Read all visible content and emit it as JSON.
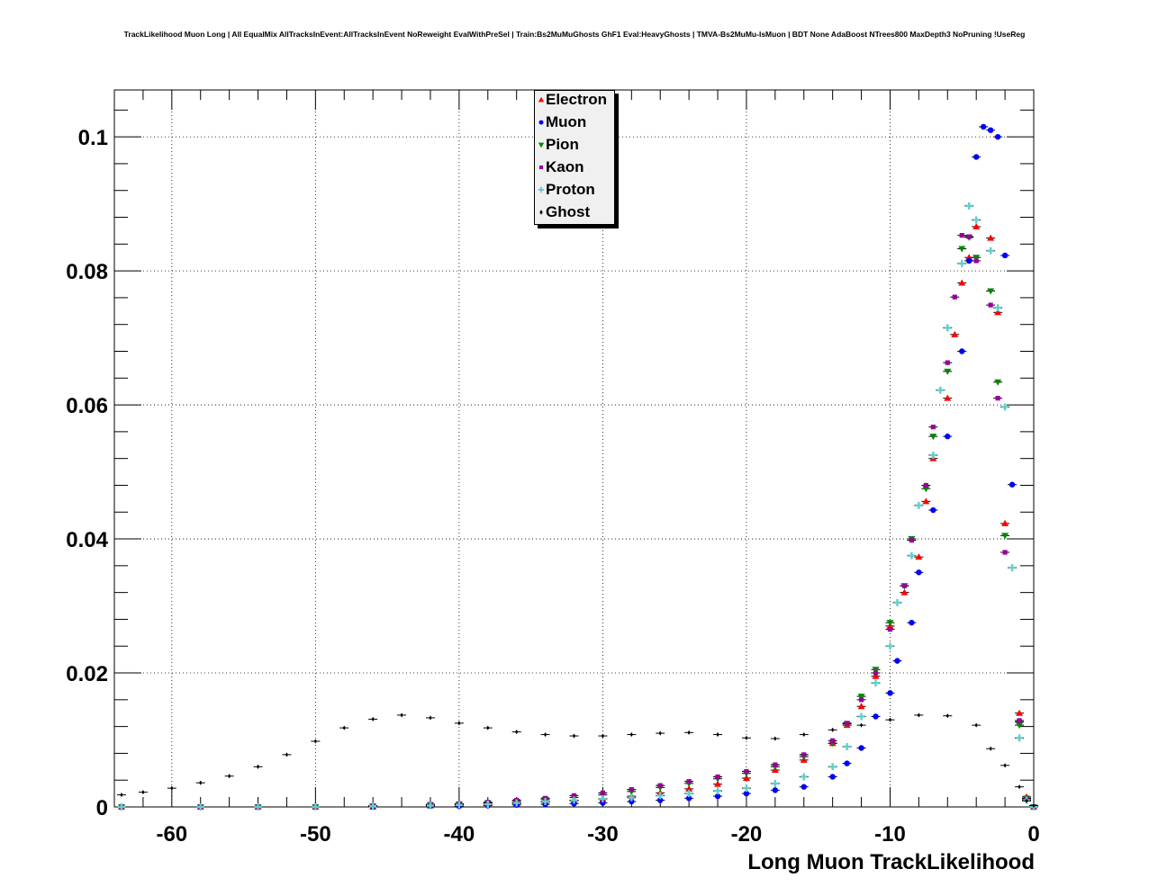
{
  "title": "TrackLikelihood Muon Long | All EqualMix AllTracksInEvent:AllTracksInEvent NoReweight EvalWithPreSel | Train:Bs2MuMuGhosts GhF1 Eval:HeavyGhosts | TMVA-Bs2MuMu-IsMuon | BDT None AdaBoost NTrees800 MaxDepth3 NoPruning !UseReg",
  "chart_data": {
    "type": "scatter",
    "title": "TrackLikelihood Muon Long | All EqualMix AllTracksInEvent:AllTracksInEvent NoReweight EvalWithPreSel | Train:Bs2MuMuGhosts GhF1 Eval:HeavyGhosts | TMVA-Bs2MuMu-IsMuon | BDT None AdaBoost NTrees800 MaxDepth3 NoPruning !UseReg",
    "xlabel": "Long Muon TrackLikelihood",
    "ylabel": "",
    "xlim": [
      -64,
      0
    ],
    "ylim": [
      0,
      0.107
    ],
    "x_ticks": [
      "-60",
      "-50",
      "-40",
      "-30",
      "-20",
      "-10",
      "0"
    ],
    "y_ticks": [
      "0",
      "0.02",
      "0.04",
      "0.06",
      "0.08",
      "0.1"
    ],
    "grid": true,
    "legend_position": "top-center",
    "series": [
      {
        "name": "Electron",
        "color": "#ff0000",
        "marker": "triangle-up",
        "points": [
          [
            -63.5,
            0
          ],
          [
            -58,
            0
          ],
          [
            -54,
            0
          ],
          [
            -50,
            0
          ],
          [
            -46,
            0
          ],
          [
            -42,
            0.0002
          ],
          [
            -40,
            0.0003
          ],
          [
            -38,
            0.0004
          ],
          [
            -36,
            0.0005
          ],
          [
            -34,
            0.0007
          ],
          [
            -32,
            0.0009
          ],
          [
            -30,
            0.0012
          ],
          [
            -28,
            0.0016
          ],
          [
            -26,
            0.0021
          ],
          [
            -24,
            0.0027
          ],
          [
            -22,
            0.0034
          ],
          [
            -20,
            0.0043
          ],
          [
            -18,
            0.0055
          ],
          [
            -16,
            0.007
          ],
          [
            -14,
            0.0095
          ],
          [
            -13,
            0.0122
          ],
          [
            -12,
            0.015
          ],
          [
            -11,
            0.0195
          ],
          [
            -10,
            0.027
          ],
          [
            -9,
            0.032
          ],
          [
            -8,
            0.0373
          ],
          [
            -7.5,
            0.0456
          ],
          [
            -7,
            0.052
          ],
          [
            -6,
            0.061
          ],
          [
            -5.5,
            0.0705
          ],
          [
            -5,
            0.0782
          ],
          [
            -4.5,
            0.082
          ],
          [
            -4,
            0.0866
          ],
          [
            -3,
            0.0849
          ],
          [
            -2.5,
            0.0738
          ],
          [
            -2,
            0.0423
          ],
          [
            -1,
            0.014
          ],
          [
            -0.5,
            0.0015
          ],
          [
            0,
            0
          ]
        ]
      },
      {
        "name": "Muon",
        "color": "#0000ff",
        "marker": "circle",
        "points": [
          [
            -63.5,
            0
          ],
          [
            -58,
            0
          ],
          [
            -54,
            0
          ],
          [
            -50,
            0
          ],
          [
            -46,
            0
          ],
          [
            -42,
            0.0001
          ],
          [
            -40,
            0.0001
          ],
          [
            -38,
            0.0002
          ],
          [
            -36,
            0.0003
          ],
          [
            -34,
            0.0004
          ],
          [
            -32,
            0.0005
          ],
          [
            -30,
            0.0006
          ],
          [
            -28,
            0.0008
          ],
          [
            -26,
            0.001
          ],
          [
            -24,
            0.0013
          ],
          [
            -22,
            0.0016
          ],
          [
            -20,
            0.002
          ],
          [
            -18,
            0.0025
          ],
          [
            -16,
            0.003
          ],
          [
            -14,
            0.0045
          ],
          [
            -13,
            0.0065
          ],
          [
            -12,
            0.0088
          ],
          [
            -11,
            0.0135
          ],
          [
            -10,
            0.017
          ],
          [
            -9.5,
            0.0218
          ],
          [
            -8.5,
            0.0275
          ],
          [
            -8,
            0.035
          ],
          [
            -7,
            0.0443
          ],
          [
            -6,
            0.0553
          ],
          [
            -5,
            0.068
          ],
          [
            -4.5,
            0.0815
          ],
          [
            -4,
            0.097
          ],
          [
            -3.5,
            0.1015
          ],
          [
            -3,
            0.101
          ],
          [
            -2.5,
            0.1
          ],
          [
            -2,
            0.0823
          ],
          [
            -1.5,
            0.0481
          ],
          [
            -1,
            0.0127
          ],
          [
            -0.5,
            0.0012
          ],
          [
            0,
            0
          ]
        ]
      },
      {
        "name": "Pion",
        "color": "#008800",
        "marker": "triangle-down",
        "points": [
          [
            -63.5,
            0
          ],
          [
            -58,
            0
          ],
          [
            -54,
            0
          ],
          [
            -50,
            0
          ],
          [
            -46,
            0.0001
          ],
          [
            -42,
            0.0003
          ],
          [
            -40,
            0.0004
          ],
          [
            -38,
            0.0006
          ],
          [
            -36,
            0.0008
          ],
          [
            -34,
            0.0011
          ],
          [
            -32,
            0.0014
          ],
          [
            -30,
            0.0018
          ],
          [
            -28,
            0.0023
          ],
          [
            -26,
            0.0029
          ],
          [
            -24,
            0.0035
          ],
          [
            -22,
            0.0042
          ],
          [
            -20,
            0.005
          ],
          [
            -18,
            0.006
          ],
          [
            -16,
            0.0075
          ],
          [
            -14,
            0.0095
          ],
          [
            -13,
            0.0124
          ],
          [
            -12,
            0.0165
          ],
          [
            -11,
            0.0205
          ],
          [
            -10,
            0.0275
          ],
          [
            -9,
            0.033
          ],
          [
            -8.5,
            0.04
          ],
          [
            -7.5,
            0.0475
          ],
          [
            -7,
            0.0553
          ],
          [
            -6,
            0.065
          ],
          [
            -5,
            0.0833
          ],
          [
            -4.5,
            0.085
          ],
          [
            -4,
            0.082
          ],
          [
            -3,
            0.077
          ],
          [
            -2.5,
            0.0634
          ],
          [
            -2,
            0.0405
          ],
          [
            -1,
            0.0122
          ],
          [
            -0.5,
            0.0013
          ],
          [
            0,
            0
          ]
        ]
      },
      {
        "name": "Kaon",
        "color": "#990099",
        "marker": "square",
        "points": [
          [
            -63.5,
            0
          ],
          [
            -58,
            0
          ],
          [
            -54,
            0
          ],
          [
            -50,
            0
          ],
          [
            -46,
            0.0002
          ],
          [
            -42,
            0.0004
          ],
          [
            -40,
            0.0005
          ],
          [
            -38,
            0.0007
          ],
          [
            -36,
            0.001
          ],
          [
            -34,
            0.0013
          ],
          [
            -32,
            0.0017
          ],
          [
            -30,
            0.0021
          ],
          [
            -28,
            0.0026
          ],
          [
            -26,
            0.0032
          ],
          [
            -24,
            0.0038
          ],
          [
            -22,
            0.0045
          ],
          [
            -20,
            0.0053
          ],
          [
            -18,
            0.0063
          ],
          [
            -16,
            0.0078
          ],
          [
            -14,
            0.0099
          ],
          [
            -13,
            0.0125
          ],
          [
            -12,
            0.016
          ],
          [
            -11,
            0.02
          ],
          [
            -10,
            0.0265
          ],
          [
            -9,
            0.033
          ],
          [
            -8.5,
            0.0398
          ],
          [
            -7.5,
            0.048
          ],
          [
            -7,
            0.0567
          ],
          [
            -6,
            0.0663
          ],
          [
            -5.5,
            0.0761
          ],
          [
            -5,
            0.0853
          ],
          [
            -4.5,
            0.0851
          ],
          [
            -4,
            0.0815
          ],
          [
            -3,
            0.0749
          ],
          [
            -2.5,
            0.061
          ],
          [
            -2,
            0.038
          ],
          [
            -1,
            0.0129
          ],
          [
            -0.5,
            0.0012
          ],
          [
            0,
            0
          ]
        ]
      },
      {
        "name": "Proton",
        "color": "#66cccc",
        "marker": "cross",
        "points": [
          [
            -63.5,
            0
          ],
          [
            -58,
            0
          ],
          [
            -54,
            0
          ],
          [
            -50,
            0
          ],
          [
            -46,
            0.0001
          ],
          [
            -42,
            0.0002
          ],
          [
            -40,
            0.0003
          ],
          [
            -38,
            0.0004
          ],
          [
            -36,
            0.0006
          ],
          [
            -34,
            0.0008
          ],
          [
            -32,
            0.001
          ],
          [
            -30,
            0.0012
          ],
          [
            -28,
            0.0014
          ],
          [
            -26,
            0.0017
          ],
          [
            -24,
            0.002
          ],
          [
            -22,
            0.0024
          ],
          [
            -20,
            0.0028
          ],
          [
            -18,
            0.0035
          ],
          [
            -16,
            0.0045
          ],
          [
            -14,
            0.006
          ],
          [
            -13,
            0.009
          ],
          [
            -12,
            0.0135
          ],
          [
            -11,
            0.0185
          ],
          [
            -10,
            0.024
          ],
          [
            -9.5,
            0.0305
          ],
          [
            -8.5,
            0.0375
          ],
          [
            -8,
            0.045
          ],
          [
            -7,
            0.0525
          ],
          [
            -6.5,
            0.0622
          ],
          [
            -6,
            0.0715
          ],
          [
            -5,
            0.0811
          ],
          [
            -4.5,
            0.0897
          ],
          [
            -4,
            0.0876
          ],
          [
            -3,
            0.083
          ],
          [
            -2.5,
            0.0745
          ],
          [
            -2,
            0.0597
          ],
          [
            -1.5,
            0.0357
          ],
          [
            -1,
            0.0103
          ],
          [
            -0.5,
            0.001
          ],
          [
            0,
            0
          ]
        ]
      },
      {
        "name": "Ghost",
        "color": "#000000",
        "marker": "diamond",
        "points": [
          [
            -63.5,
            0.0018
          ],
          [
            -62,
            0.0022
          ],
          [
            -60,
            0.0028
          ],
          [
            -58,
            0.0036
          ],
          [
            -56,
            0.0046
          ],
          [
            -54,
            0.006
          ],
          [
            -52,
            0.0078
          ],
          [
            -50,
            0.0098
          ],
          [
            -48,
            0.0118
          ],
          [
            -46,
            0.0131
          ],
          [
            -44,
            0.0137
          ],
          [
            -42,
            0.0133
          ],
          [
            -40,
            0.0125
          ],
          [
            -38,
            0.0118
          ],
          [
            -36,
            0.0112
          ],
          [
            -34,
            0.0108
          ],
          [
            -32,
            0.0106
          ],
          [
            -30,
            0.0106
          ],
          [
            -28,
            0.0108
          ],
          [
            -26,
            0.011
          ],
          [
            -24,
            0.0111
          ],
          [
            -22,
            0.0108
          ],
          [
            -20,
            0.0103
          ],
          [
            -18,
            0.0102
          ],
          [
            -16,
            0.0108
          ],
          [
            -14,
            0.0115
          ],
          [
            -12,
            0.0122
          ],
          [
            -10,
            0.013
          ],
          [
            -8,
            0.0137
          ],
          [
            -6,
            0.0136
          ],
          [
            -4,
            0.0122
          ],
          [
            -3,
            0.0087
          ],
          [
            -2,
            0.0062
          ],
          [
            -1,
            0.003
          ],
          [
            -0.5,
            0.0009
          ],
          [
            0,
            0.0002
          ]
        ]
      }
    ]
  }
}
